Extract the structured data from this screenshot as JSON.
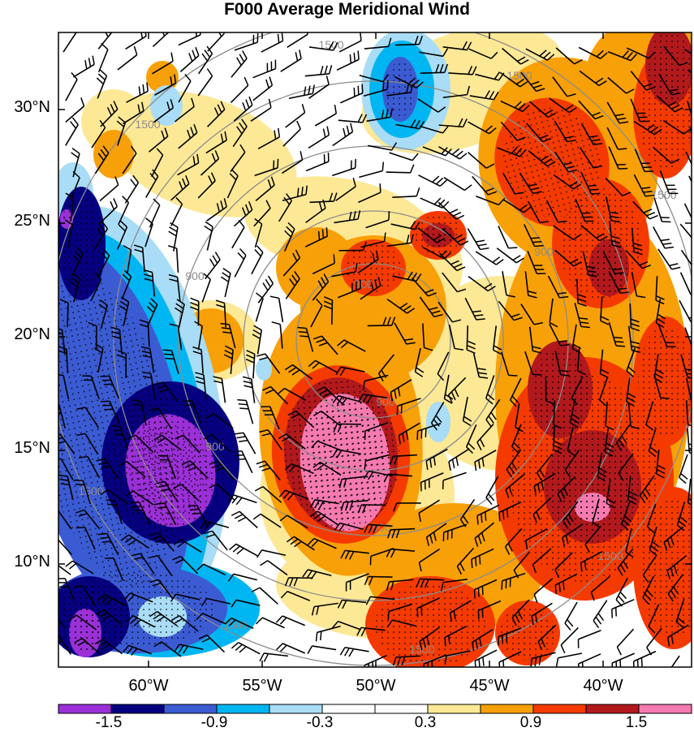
{
  "title": "F000 Average Meridional Wind",
  "y_axis": {
    "labels": [
      {
        "text": "30°N",
        "value": 30
      },
      {
        "text": "25°N",
        "value": 25
      },
      {
        "text": "20°N",
        "value": 20
      },
      {
        "text": "15°N",
        "value": 15
      },
      {
        "text": "10°N",
        "value": 10
      }
    ]
  },
  "x_axis": {
    "labels": [
      {
        "text": "60°W",
        "value": -60
      },
      {
        "text": "55°W",
        "value": -55
      },
      {
        "text": "50°W",
        "value": -50
      },
      {
        "text": "45°W",
        "value": -45
      },
      {
        "text": "40°W",
        "value": -40
      }
    ]
  },
  "contour_labels": [
    "1500",
    "900"
  ],
  "colorbar": {
    "colors": [
      "#9b30d8",
      "#060080",
      "#3b5bd3",
      "#00b6f2",
      "#a9dcf6",
      "#ffffff",
      "#ffffff",
      "#fde895",
      "#f8a007",
      "#f53a00",
      "#b2191c",
      "#f57ab0"
    ],
    "labels": [
      "-1.5",
      "-0.9",
      "-0.3",
      "0.3",
      "0.9",
      "1.5"
    ]
  },
  "field_colors": {
    "neg_strong": "#9b30d8",
    "neg_4": "#060080",
    "neg_3": "#3b5bd3",
    "neg_2": "#00b6f2",
    "neg_1": "#a9dcf6",
    "pos_1": "#fde895",
    "pos_2": "#f8a007",
    "pos_3": "#f53a00",
    "pos_4": "#b2191c",
    "pos_strong": "#f57ab0"
  }
}
